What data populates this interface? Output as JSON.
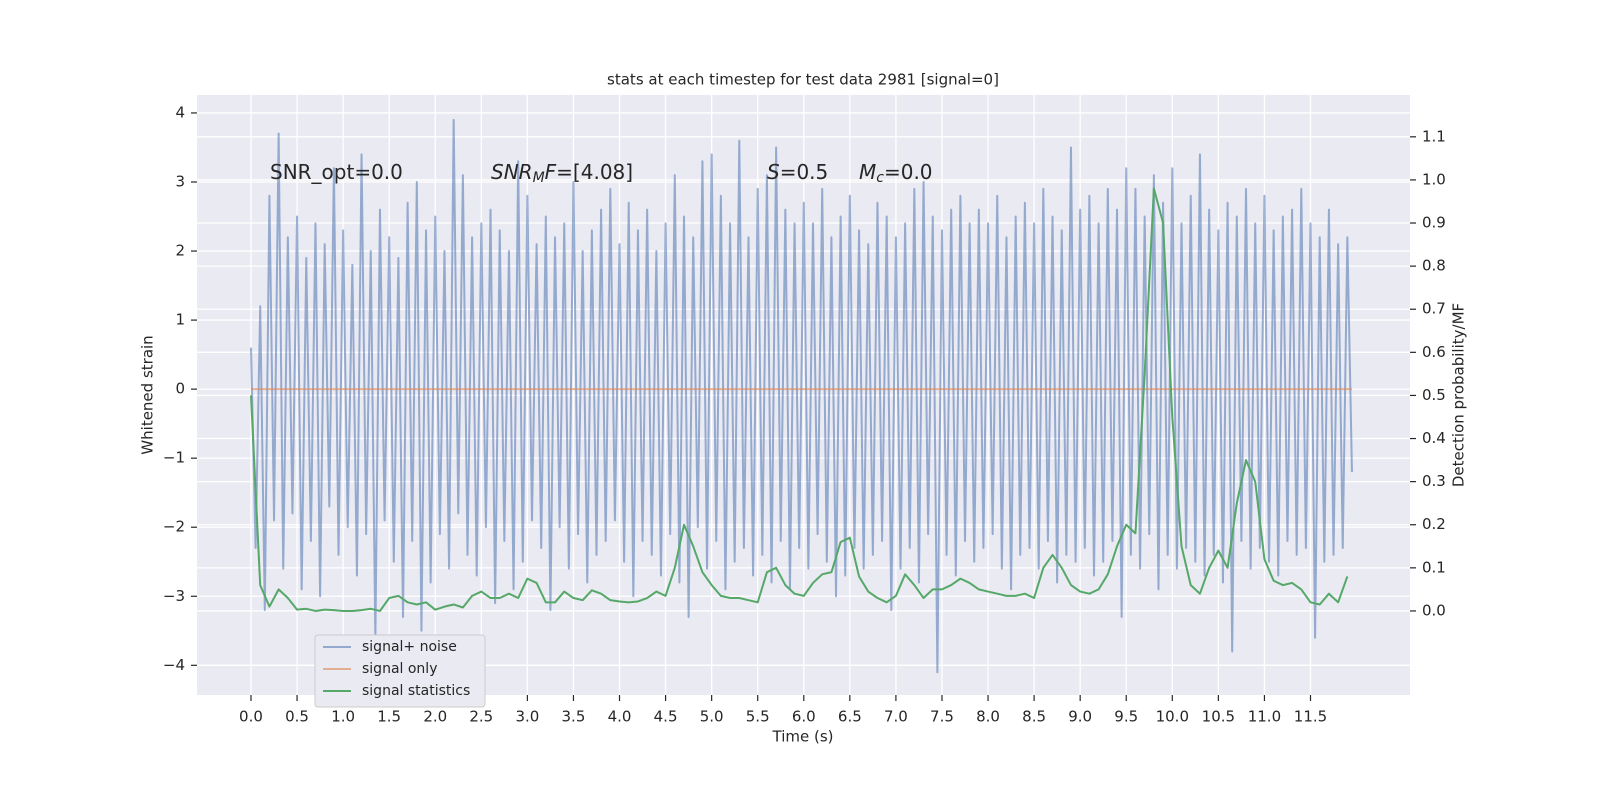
{
  "chart_data": {
    "type": "line",
    "title": "stats at each timestep for test data 2981 [signal=0]",
    "xlabel": "Time (s)",
    "ylabel": "Whitened strain",
    "y2label": "Detection probability/MF",
    "grid": true,
    "legend": "lower left",
    "xlim": [
      -0.586,
      12.58
    ],
    "xticks": [
      {
        "value": 0,
        "label": "0.0"
      },
      0.5,
      {
        "value": 1,
        "label": "1.0"
      },
      1.5,
      {
        "value": 2,
        "label": "2.0"
      },
      2.5,
      {
        "value": 3,
        "label": "3.0"
      },
      3.5,
      {
        "value": 4,
        "label": "4.0"
      },
      4.5,
      {
        "value": 5,
        "label": "5.0"
      },
      5.5,
      {
        "value": 6,
        "label": "6.0"
      },
      6.5,
      {
        "value": 7,
        "label": "7.0"
      },
      7.5,
      {
        "value": 8,
        "label": "8.0"
      },
      8.5,
      {
        "value": 9,
        "label": "9.0"
      },
      9.5,
      {
        "value": 10,
        "label": "10.0"
      },
      10.5,
      {
        "value": 11,
        "label": "11.0"
      },
      11.5
    ],
    "ylim": [
      -4.43,
      4.26
    ],
    "yticks": [
      {
        "value": -4,
        "label": "−4"
      },
      {
        "value": -3,
        "label": "−3"
      },
      {
        "value": -2,
        "label": "−2"
      },
      {
        "value": -1,
        "label": "−1"
      },
      0,
      1,
      2,
      3,
      4
    ],
    "y2lim": [
      -0.195,
      1.197
    ],
    "y2ticks": [
      {
        "value": 0,
        "label": "0.0"
      },
      0.1,
      0.2,
      0.3,
      0.4,
      0.5,
      0.6,
      0.7,
      0.8,
      0.9,
      {
        "value": 1,
        "label": "1.0"
      },
      1.1
    ],
    "annotations": [
      [
        {
          "text": "SNR_opt=0.0",
          "style": "normal"
        }
      ],
      [
        {
          "text": "SNR",
          "style": "italic"
        },
        {
          "text": "M",
          "style": "sub"
        },
        {
          "text": "F",
          "style": "italic"
        },
        {
          "text": "=[4.08]",
          "style": "normal"
        }
      ],
      [
        {
          "text": "S",
          "style": "italic"
        },
        {
          "text": "=0.5",
          "style": "normal"
        }
      ],
      [
        {
          "text": "M",
          "style": "italic"
        },
        {
          "text": "c",
          "style": "sub"
        },
        {
          "text": "=0.0",
          "style": "normal"
        }
      ]
    ],
    "series": [
      {
        "name": "signal+ noise",
        "color": "#4c72b0",
        "opacity": 0.55,
        "x": [
          0,
          0.05,
          0.1,
          0.15,
          0.2,
          0.25,
          0.3,
          0.35,
          0.4,
          0.45,
          0.5,
          0.55,
          0.6,
          0.65,
          0.7,
          0.75,
          0.8,
          0.85,
          0.9,
          0.95,
          1,
          1.05,
          1.1,
          1.15,
          1.2,
          1.25,
          1.3,
          1.35,
          1.4,
          1.45,
          1.5,
          1.55,
          1.6,
          1.65,
          1.7,
          1.75,
          1.8,
          1.85,
          1.9,
          1.95,
          2,
          2.05,
          2.1,
          2.15,
          2.2,
          2.25,
          2.3,
          2.35,
          2.4,
          2.45,
          2.5,
          2.55,
          2.6,
          2.65,
          2.7,
          2.75,
          2.8,
          2.85,
          2.9,
          2.95,
          3,
          3.05,
          3.1,
          3.15,
          3.2,
          3.25,
          3.3,
          3.35,
          3.4,
          3.45,
          3.5,
          3.55,
          3.6,
          3.65,
          3.7,
          3.75,
          3.8,
          3.85,
          3.9,
          3.95,
          4,
          4.05,
          4.1,
          4.15,
          4.2,
          4.25,
          4.3,
          4.35,
          4.4,
          4.45,
          4.5,
          4.55,
          4.6,
          4.65,
          4.7,
          4.75,
          4.8,
          4.85,
          4.9,
          4.95,
          5,
          5.05,
          5.1,
          5.15,
          5.2,
          5.25,
          5.3,
          5.35,
          5.4,
          5.45,
          5.5,
          5.55,
          5.6,
          5.65,
          5.7,
          5.75,
          5.8,
          5.85,
          5.9,
          5.95,
          6,
          6.05,
          6.1,
          6.15,
          6.2,
          6.25,
          6.3,
          6.35,
          6.4,
          6.45,
          6.5,
          6.55,
          6.6,
          6.65,
          6.7,
          6.75,
          6.8,
          6.85,
          6.9,
          6.95,
          7,
          7.05,
          7.1,
          7.15,
          7.2,
          7.25,
          7.3,
          7.35,
          7.4,
          7.45,
          7.5,
          7.55,
          7.6,
          7.65,
          7.7,
          7.75,
          7.8,
          7.85,
          7.9,
          7.95,
          8,
          8.05,
          8.1,
          8.15,
          8.2,
          8.25,
          8.3,
          8.35,
          8.4,
          8.45,
          8.5,
          8.55,
          8.6,
          8.65,
          8.7,
          8.75,
          8.8,
          8.85,
          8.9,
          8.95,
          9,
          9.05,
          9.1,
          9.15,
          9.2,
          9.25,
          9.3,
          9.35,
          9.4,
          9.45,
          9.5,
          9.55,
          9.6,
          9.65,
          9.7,
          9.75,
          9.8,
          9.85,
          9.9,
          9.95,
          10,
          10.05,
          10.1,
          10.15,
          10.2,
          10.25,
          10.3,
          10.35,
          10.4,
          10.45,
          10.5,
          10.55,
          10.6,
          10.65,
          10.7,
          10.75,
          10.8,
          10.85,
          10.9,
          10.95,
          11,
          11.05,
          11.1,
          11.15,
          11.2,
          11.25,
          11.3,
          11.35,
          11.4,
          11.45,
          11.5,
          11.55,
          11.6,
          11.65,
          11.7,
          11.75,
          11.8,
          11.85,
          11.9,
          11.95
        ],
        "values": [
          0.6,
          -2.3,
          1.2,
          -3.2,
          2.8,
          -1.9,
          3.7,
          -2.6,
          2.2,
          -1.8,
          2.5,
          -2.9,
          1.9,
          -2.2,
          2.4,
          -3.0,
          2.1,
          -1.7,
          3.2,
          -2.4,
          2.3,
          -2.0,
          1.8,
          -2.7,
          3.4,
          -2.1,
          2.0,
          -3.6,
          2.6,
          -1.9,
          2.2,
          -2.5,
          1.9,
          -3.3,
          2.7,
          -2.2,
          3.0,
          -3.5,
          2.3,
          -2.8,
          2.5,
          -2.1,
          2.0,
          -2.6,
          3.9,
          -1.8,
          3.1,
          -2.4,
          2.2,
          -2.7,
          2.4,
          -2.0,
          2.6,
          -3.1,
          2.3,
          -2.2,
          2.0,
          -2.9,
          3.3,
          -2.5,
          2.8,
          -1.9,
          2.1,
          -2.3,
          2.5,
          -3.2,
          2.2,
          -2.0,
          2.4,
          -2.6,
          3.0,
          -2.1,
          2.0,
          -2.8,
          2.3,
          -2.4,
          2.6,
          -2.2,
          2.9,
          -1.9,
          2.1,
          -2.5,
          2.7,
          -3.0,
          2.3,
          -2.2,
          2.6,
          -2.4,
          2.0,
          -2.7,
          2.4,
          -2.1,
          3.1,
          -2.8,
          2.5,
          -3.3,
          2.2,
          -2.0,
          3.3,
          -2.6,
          3.4,
          -2.2,
          2.8,
          -2.9,
          2.4,
          -2.5,
          3.6,
          -2.3,
          2.2,
          -2.7,
          2.9,
          -2.4,
          3.1,
          -2.8,
          3.5,
          -2.2,
          2.6,
          -2.9,
          2.4,
          -2.3,
          2.7,
          -2.6,
          2.4,
          -2.1,
          2.9,
          -2.5,
          2.2,
          -3.0,
          2.5,
          -2.7,
          2.8,
          -2.3,
          2.3,
          -2.6,
          2.1,
          -2.4,
          2.7,
          -2.2,
          2.5,
          -3.2,
          2.2,
          -2.6,
          2.4,
          -2.3,
          2.9,
          -2.8,
          3.0,
          -2.1,
          2.5,
          -4.1,
          2.3,
          -2.4,
          2.6,
          -2.7,
          2.8,
          -2.2,
          2.4,
          -2.5,
          2.6,
          -2.3,
          2.4,
          -2.1,
          2.8,
          -2.6,
          2.2,
          -2.9,
          2.5,
          -2.4,
          2.7,
          -2.3,
          2.4,
          -2.6,
          2.9,
          -2.2,
          2.5,
          -2.8,
          2.3,
          -2.4,
          3.5,
          -2.5,
          2.6,
          -2.3,
          2.8,
          -2.7,
          2.4,
          -2.5,
          2.9,
          -2.2,
          2.6,
          -3.3,
          3.2,
          -2.4,
          2.9,
          -2.6,
          2.5,
          -2.1,
          3.1,
          -2.9,
          2.7,
          -2.4,
          3.2,
          -2.6,
          2.4,
          -2.3,
          2.8,
          -2.5,
          3.4,
          -2.7,
          2.6,
          -2.4,
          2.3,
          -2.8,
          2.7,
          -3.8,
          2.5,
          -2.2,
          2.9,
          -2.6,
          2.4,
          -2.3,
          2.8,
          -2.5,
          2.3,
          -2.7,
          2.5,
          -2.2,
          2.6,
          -2.4,
          2.9,
          -2.3,
          2.4,
          -3.6,
          2.2,
          -2.5,
          2.6,
          -2.4,
          2.1,
          -2.3,
          2.2,
          -1.2
        ]
      },
      {
        "name": "signal only",
        "color": "#dd8452",
        "opacity": 0.6,
        "x": [
          0,
          11.95
        ],
        "values": [
          0,
          0
        ]
      },
      {
        "name": "signal statistics",
        "color": "#55a868",
        "opacity": 1,
        "axis": "y2",
        "x": [
          0,
          0.1,
          0.2,
          0.3,
          0.4,
          0.5,
          0.6,
          0.7,
          0.8,
          0.9,
          1,
          1.1,
          1.2,
          1.3,
          1.4,
          1.5,
          1.6,
          1.7,
          1.8,
          1.9,
          2,
          2.1,
          2.2,
          2.3,
          2.4,
          2.5,
          2.6,
          2.7,
          2.8,
          2.9,
          3,
          3.1,
          3.2,
          3.3,
          3.4,
          3.5,
          3.6,
          3.7,
          3.8,
          3.9,
          4,
          4.1,
          4.2,
          4.3,
          4.4,
          4.5,
          4.6,
          4.7,
          4.8,
          4.9,
          5,
          5.1,
          5.2,
          5.3,
          5.4,
          5.5,
          5.6,
          5.7,
          5.8,
          5.9,
          6,
          6.1,
          6.2,
          6.3,
          6.4,
          6.5,
          6.6,
          6.7,
          6.8,
          6.9,
          7,
          7.1,
          7.2,
          7.3,
          7.4,
          7.5,
          7.6,
          7.7,
          7.8,
          7.9,
          8,
          8.1,
          8.2,
          8.3,
          8.4,
          8.5,
          8.6,
          8.7,
          8.8,
          8.9,
          9,
          9.1,
          9.2,
          9.3,
          9.4,
          9.5,
          9.6,
          9.7,
          9.8,
          9.9,
          10,
          10.1,
          10.2,
          10.3,
          10.4,
          10.5,
          10.6,
          10.7,
          10.8,
          10.9,
          11,
          11.1,
          11.2,
          11.3,
          11.4,
          11.5,
          11.6,
          11.7,
          11.8,
          11.9
        ],
        "values": [
          0.5,
          0.06,
          0.01,
          0.05,
          0.03,
          0.003,
          0.005,
          0.0,
          0.003,
          0.002,
          0.0,
          0.0,
          0.002,
          0.005,
          0.0,
          0.03,
          0.035,
          0.02,
          0.015,
          0.02,
          0.003,
          0.01,
          0.015,
          0.008,
          0.035,
          0.045,
          0.03,
          0.03,
          0.04,
          0.03,
          0.075,
          0.065,
          0.02,
          0.02,
          0.045,
          0.03,
          0.025,
          0.048,
          0.04,
          0.025,
          0.022,
          0.02,
          0.022,
          0.03,
          0.045,
          0.035,
          0.1,
          0.2,
          0.15,
          0.09,
          0.06,
          0.035,
          0.03,
          0.03,
          0.025,
          0.02,
          0.09,
          0.1,
          0.06,
          0.04,
          0.035,
          0.065,
          0.085,
          0.09,
          0.16,
          0.17,
          0.08,
          0.045,
          0.03,
          0.02,
          0.035,
          0.085,
          0.06,
          0.03,
          0.05,
          0.05,
          0.06,
          0.075,
          0.065,
          0.05,
          0.045,
          0.04,
          0.035,
          0.035,
          0.04,
          0.03,
          0.1,
          0.13,
          0.1,
          0.06,
          0.045,
          0.04,
          0.05,
          0.085,
          0.15,
          0.2,
          0.18,
          0.55,
          0.98,
          0.9,
          0.45,
          0.15,
          0.06,
          0.04,
          0.1,
          0.14,
          0.1,
          0.25,
          0.35,
          0.3,
          0.12,
          0.07,
          0.06,
          0.065,
          0.05,
          0.02,
          0.015,
          0.04,
          0.02,
          0.08
        ]
      }
    ]
  }
}
